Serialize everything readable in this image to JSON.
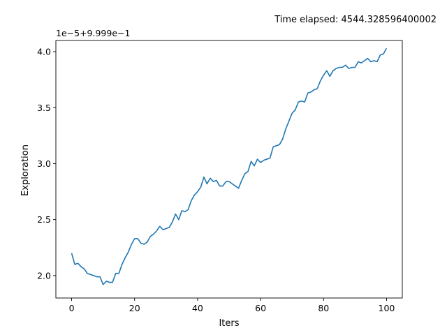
{
  "chart_data": {
    "type": "line",
    "title": "Time elapsed: 4544.328596400002",
    "xlabel": "Iters",
    "ylabel": "Exploration",
    "offset_text": "1e−5+9.999e−1",
    "xlim": [
      -5,
      105
    ],
    "ylim": [
      1.8,
      4.1
    ],
    "xticks": [
      0,
      20,
      40,
      60,
      80,
      100
    ],
    "xtick_labels": [
      "0",
      "20",
      "40",
      "60",
      "80",
      "100"
    ],
    "yticks": [
      2.0,
      2.5,
      3.0,
      3.5,
      4.0
    ],
    "ytick_labels": [
      "2.0",
      "2.5",
      "3.0",
      "3.5",
      "4.0"
    ],
    "grid": false,
    "series": [
      {
        "color": "#1f77b4",
        "x": [
          0,
          1,
          2,
          3,
          4,
          5,
          6,
          7,
          8,
          9,
          10,
          11,
          12,
          13,
          14,
          15,
          16,
          17,
          18,
          19,
          20,
          21,
          22,
          23,
          24,
          25,
          26,
          27,
          28,
          29,
          30,
          31,
          32,
          33,
          34,
          35,
          36,
          37,
          38,
          39,
          40,
          41,
          42,
          43,
          44,
          45,
          46,
          47,
          48,
          49,
          50,
          51,
          52,
          53,
          54,
          55,
          56,
          57,
          58,
          59,
          60,
          61,
          62,
          63,
          64,
          65,
          66,
          67,
          68,
          69,
          70,
          71,
          72,
          73,
          74,
          75,
          76,
          77,
          78,
          79,
          80,
          81,
          82,
          83,
          84,
          85,
          86,
          87,
          88,
          89,
          90,
          91,
          92,
          93,
          94,
          95,
          96,
          97,
          98,
          99,
          100
        ],
        "y": [
          2.2,
          2.1,
          2.11,
          2.08,
          2.06,
          2.02,
          2.01,
          2.0,
          1.99,
          1.99,
          1.92,
          1.95,
          1.94,
          1.94,
          2.02,
          2.02,
          2.1,
          2.16,
          2.21,
          2.28,
          2.33,
          2.33,
          2.29,
          2.28,
          2.3,
          2.35,
          2.37,
          2.4,
          2.44,
          2.41,
          2.42,
          2.43,
          2.48,
          2.55,
          2.5,
          2.58,
          2.57,
          2.59,
          2.67,
          2.72,
          2.75,
          2.79,
          2.88,
          2.82,
          2.87,
          2.84,
          2.85,
          2.8,
          2.8,
          2.84,
          2.84,
          2.82,
          2.8,
          2.78,
          2.85,
          2.91,
          2.93,
          3.02,
          2.98,
          3.04,
          3.01,
          3.03,
          3.04,
          3.05,
          3.15,
          3.16,
          3.17,
          3.22,
          3.31,
          3.38,
          3.45,
          3.48,
          3.55,
          3.56,
          3.55,
          3.63,
          3.64,
          3.66,
          3.67,
          3.74,
          3.79,
          3.83,
          3.78,
          3.83,
          3.85,
          3.86,
          3.86,
          3.88,
          3.85,
          3.86,
          3.86,
          3.91,
          3.9,
          3.92,
          3.94,
          3.91,
          3.92,
          3.91,
          3.97,
          3.98,
          4.03
        ]
      }
    ]
  }
}
